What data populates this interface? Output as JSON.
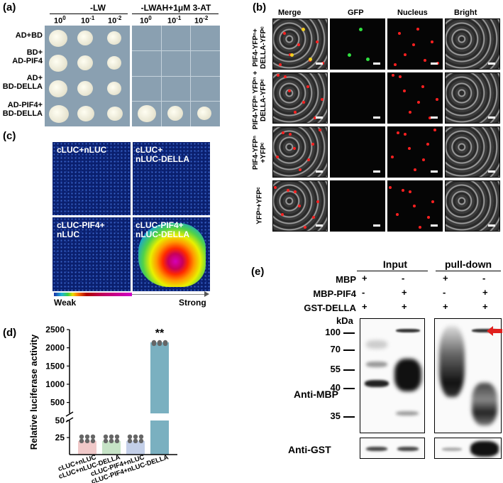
{
  "panel_a": {
    "label": "(a)",
    "media": [
      {
        "title": "-LW",
        "dilutions": [
          "10",
          "10",
          "10"
        ],
        "exponents": [
          "0",
          "-1",
          "-2"
        ]
      },
      {
        "title": "-LWAH+1μM 3-AT",
        "dilutions": [
          "10",
          "10",
          "10"
        ],
        "exponents": [
          "0",
          "-1",
          "-2"
        ]
      }
    ],
    "rows": [
      {
        "line1": "AD+BD",
        "line2": ""
      },
      {
        "line1": "BD+",
        "line2": "AD-PIF4"
      },
      {
        "line1": "AD+",
        "line2": "BD-DELLA"
      },
      {
        "line1": "AD-PIF4+",
        "line2": "BD-DELLA"
      }
    ]
  },
  "panel_b": {
    "label": "(b)",
    "columns": [
      "Merge",
      "GFP",
      "Nucleus",
      "Bright"
    ],
    "rows": [
      {
        "line1": "PIF4-YFPⁿ+",
        "line2": "DELLA-YFPᶜ"
      },
      {
        "line1": "PIF4-YFPⁿ YFPⁿ +",
        "line2": "DELLA-YFPᶜ"
      },
      {
        "line1": "PIF4-YFPⁿ",
        "line2": "+YFPᶜ"
      },
      {
        "line1": "YFPⁿ+YFPᶜ",
        "line2": ""
      }
    ]
  },
  "panel_c": {
    "label": "(c)",
    "quadrants": [
      {
        "line1": "cLUC+nLUC",
        "line2": ""
      },
      {
        "line1": "cLUC+",
        "line2": "nLUC-DELLA"
      },
      {
        "line1": "cLUC-PIF4+",
        "line2": "nLUC"
      },
      {
        "line1": "cLUC-PIF4+",
        "line2": "nLUC-DELLA"
      }
    ],
    "scale_weak": "Weak",
    "scale_strong": "Strong"
  },
  "panel_d": {
    "label": "(d)",
    "significance": "**",
    "colors": {
      "bar1": "#f0c9c9",
      "bar2": "#c6e3c6",
      "bar3": "#c3cfe8",
      "bar4": "#7ab0c0",
      "dot": "#666666"
    }
  },
  "chart_data": {
    "type": "bar",
    "ylabel": "Relative luciferase activity",
    "categories": [
      "cLUC+nLUC",
      "cLUC+nLUC-DELLA",
      "cLUC-PIF4+nLUC",
      "cLUC-PIF4+nLUC-DELLA"
    ],
    "values": [
      20,
      20,
      20,
      2150
    ],
    "points": [
      [
        20,
        20,
        20,
        20,
        20,
        20
      ],
      [
        20,
        20,
        20,
        20,
        20,
        20
      ],
      [
        20,
        20,
        20,
        20,
        20,
        20
      ],
      [
        2150,
        2150,
        2150,
        2150,
        2150,
        2150
      ]
    ],
    "axis_break": [
      50,
      200
    ],
    "ticks_lower": [
      "25",
      "50"
    ],
    "ticks_upper": [
      "500",
      "1000",
      "1500",
      "2000",
      "2500"
    ],
    "ylim_lower": [
      0,
      50
    ],
    "ylim_upper": [
      200,
      2500
    ]
  },
  "panel_e": {
    "label": "(e)",
    "input_title": "Input",
    "pulldown_title": "pull-down",
    "row_labels": [
      "MBP",
      "MBP-PIF4",
      "GST-DELLA"
    ],
    "signs": [
      [
        "+",
        "-",
        "+",
        "-"
      ],
      [
        "-",
        "+",
        "-",
        "+"
      ],
      [
        "+",
        "+",
        "+",
        "+"
      ]
    ],
    "kda": "kDa",
    "markers": [
      "100",
      "70",
      "55",
      "40",
      "35"
    ],
    "anti_mbp": "Anti-MBP",
    "anti_gst": "Anti-GST",
    "arrow_color": "#e0201e"
  }
}
